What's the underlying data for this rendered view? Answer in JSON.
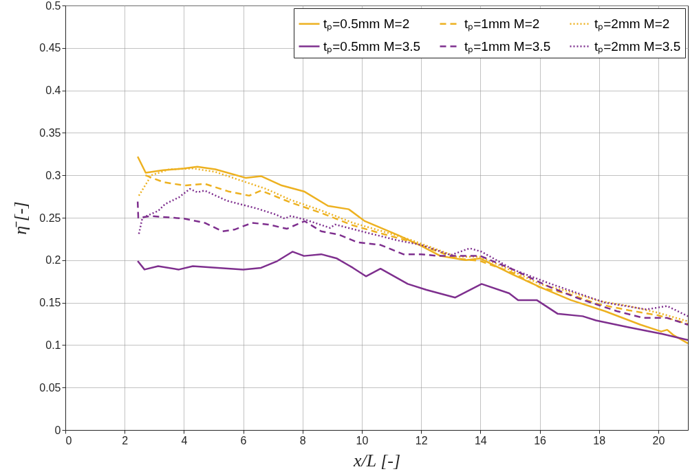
{
  "chart_data": {
    "type": "line",
    "xlabel": "x/L [-]",
    "ylabel": "η̄ [-]",
    "xlim": [
      0,
      21
    ],
    "xticks": [
      0,
      2,
      4,
      6,
      8,
      10,
      12,
      14,
      16,
      18,
      20
    ],
    "ylim": [
      0,
      0.5
    ],
    "yticks": [
      0,
      0.05,
      0.1,
      0.15,
      0.2,
      0.25,
      0.3,
      0.35,
      0.4,
      0.45,
      0.5
    ],
    "grid": true,
    "legend": "top right",
    "series": [
      {
        "name": "tₚ=0.5mm M=2",
        "color": "#edb120",
        "line_style": "solid",
        "x": [
          2.44,
          2.71,
          3.3,
          4.0,
          4.45,
          5.06,
          6.08,
          6.6,
          7.3,
          8.05,
          8.86,
          9.56,
          10.1,
          11.25,
          12.0,
          12.65,
          13.5,
          14.0,
          15.1,
          16.1,
          17.05,
          18.2,
          19.4,
          20.1,
          20.3,
          20.5,
          21
        ],
        "values": [
          0.322,
          0.303,
          0.306,
          0.308,
          0.31,
          0.307,
          0.297,
          0.299,
          0.288,
          0.281,
          0.264,
          0.26,
          0.246,
          0.229,
          0.217,
          0.205,
          0.2,
          0.202,
          0.183,
          0.167,
          0.153,
          0.14,
          0.124,
          0.116,
          0.118,
          0.112,
          0.102
        ]
      },
      {
        "name": "tₚ=1mm M=2",
        "color": "#edb120",
        "line_style": "dashed",
        "x": [
          2.7,
          3.3,
          4.0,
          4.7,
          5.5,
          6.2,
          6.6,
          7.6,
          8.6,
          9.7,
          10.7,
          11.65,
          12.35,
          13.2,
          14.0,
          15.1,
          16.0,
          17.0,
          18.0,
          19.0,
          20.0,
          21
        ],
        "values": [
          0.3,
          0.292,
          0.288,
          0.29,
          0.281,
          0.276,
          0.282,
          0.268,
          0.256,
          0.241,
          0.231,
          0.222,
          0.213,
          0.202,
          0.199,
          0.185,
          0.168,
          0.16,
          0.148,
          0.141,
          0.135,
          0.125
        ]
      },
      {
        "name": "tₚ=2mm M=2",
        "color": "#edb120",
        "line_style": "dotted",
        "x": [
          2.48,
          2.9,
          3.5,
          4.3,
          5.06,
          6.08,
          6.77,
          7.6,
          8.6,
          9.7,
          10.7,
          11.65,
          12.35,
          13.2,
          14.0,
          15.1,
          16.0,
          17.0,
          18.0,
          19.0,
          20.0,
          21
        ],
        "values": [
          0.276,
          0.3,
          0.307,
          0.308,
          0.304,
          0.292,
          0.284,
          0.271,
          0.259,
          0.244,
          0.234,
          0.224,
          0.215,
          0.204,
          0.204,
          0.187,
          0.172,
          0.163,
          0.152,
          0.146,
          0.138,
          0.128
        ]
      },
      {
        "name": "tₚ=0.5mm M=3.5",
        "color": "#7e2f8e",
        "line_style": "solid",
        "x": [
          2.44,
          2.67,
          3.13,
          3.83,
          4.3,
          6.0,
          6.6,
          7.15,
          7.66,
          8.05,
          8.63,
          9.16,
          9.7,
          10.14,
          10.63,
          11.55,
          12.18,
          13.15,
          14.04,
          14.97,
          15.27,
          15.9,
          16.6,
          17.45,
          17.9,
          19.0,
          20.14,
          21
        ],
        "values": [
          0.199,
          0.189,
          0.193,
          0.189,
          0.193,
          0.189,
          0.191,
          0.199,
          0.21,
          0.205,
          0.207,
          0.202,
          0.191,
          0.181,
          0.19,
          0.172,
          0.165,
          0.156,
          0.172,
          0.161,
          0.153,
          0.153,
          0.137,
          0.134,
          0.129,
          0.121,
          0.113,
          0.106
        ]
      },
      {
        "name": "tₚ=1mm M=3.5",
        "color": "#7e2f8e",
        "line_style": "dashed",
        "x": [
          2.44,
          2.46,
          2.9,
          4.0,
          4.7,
          5.3,
          5.7,
          6.3,
          6.85,
          7.47,
          8.07,
          8.63,
          9.23,
          9.86,
          10.63,
          11.4,
          12.0,
          12.57,
          13.5,
          14.0,
          15.1,
          16.3,
          17.3,
          18.6,
          19.5,
          20.3,
          21
        ],
        "values": [
          0.269,
          0.25,
          0.252,
          0.249,
          0.244,
          0.234,
          0.236,
          0.244,
          0.242,
          0.237,
          0.246,
          0.234,
          0.23,
          0.221,
          0.218,
          0.207,
          0.207,
          0.205,
          0.205,
          0.205,
          0.189,
          0.169,
          0.155,
          0.14,
          0.132,
          0.132,
          0.124
        ]
      },
      {
        "name": "tₚ=2mm M=3.5",
        "color": "#7e2f8e",
        "line_style": "dotted",
        "x": [
          2.48,
          2.6,
          3.13,
          3.36,
          3.83,
          4.2,
          4.45,
          4.7,
          5.45,
          6.45,
          7.08,
          7.4,
          7.6,
          8.07,
          8.93,
          9.1,
          10.1,
          11.25,
          12.0,
          13.0,
          13.64,
          14.04,
          15.1,
          16.3,
          17.05,
          18.2,
          19.6,
          20.3,
          21
        ],
        "values": [
          0.231,
          0.25,
          0.258,
          0.266,
          0.274,
          0.284,
          0.28,
          0.282,
          0.27,
          0.261,
          0.254,
          0.249,
          0.252,
          0.248,
          0.238,
          0.242,
          0.233,
          0.223,
          0.218,
          0.206,
          0.214,
          0.21,
          0.189,
          0.173,
          0.164,
          0.15,
          0.142,
          0.146,
          0.134
        ]
      }
    ]
  }
}
